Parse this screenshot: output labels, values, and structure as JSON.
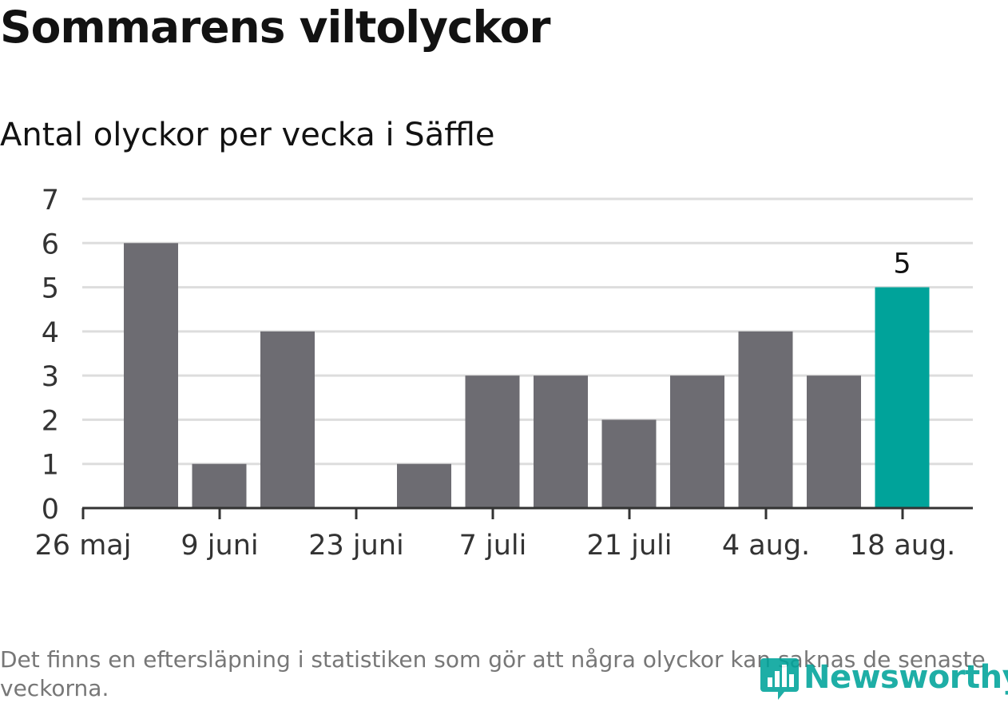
{
  "title": "Sommarens viltolyckor",
  "subtitle": "Antal olyckor per vecka i Säffle",
  "footnote": "Det finns en eftersläpning i statistiken som gör att några olyckor kan saknas de senaste veckorna.",
  "logo_text": "Newsworthy",
  "colors": {
    "bar": "#6d6c72",
    "highlight": "#00a39a",
    "grid": "#dddddd",
    "axis": "#333333",
    "text": "#333333"
  },
  "chart_data": {
    "type": "bar",
    "x": [
      "2019-05-27",
      "2019-06-03",
      "2019-06-10",
      "2019-06-17",
      "2019-06-24",
      "2019-07-01",
      "2019-07-08",
      "2019-07-15",
      "2019-07-22",
      "2019-07-29",
      "2019-08-05",
      "2019-08-12"
    ],
    "values": [
      6,
      1,
      4,
      0,
      1,
      3,
      3,
      2,
      3,
      4,
      3,
      5
    ],
    "highlight_index": 11,
    "data_labels": [
      {
        "index": 11,
        "text": "5"
      }
    ],
    "x_ticks": [
      "26 maj",
      "9 juni",
      "23 juni",
      "7 juli",
      "21 juli",
      "4 aug.",
      "18 aug."
    ],
    "y_ticks": [
      "0",
      "1",
      "2",
      "3",
      "4",
      "5",
      "6",
      "7"
    ],
    "ylim": [
      0,
      7
    ],
    "grid": true,
    "legend": false
  }
}
